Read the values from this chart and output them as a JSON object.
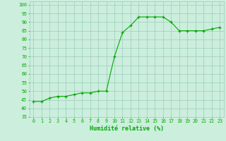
{
  "x": [
    0,
    1,
    2,
    3,
    4,
    5,
    6,
    7,
    8,
    9,
    10,
    11,
    12,
    13,
    14,
    15,
    16,
    17,
    18,
    19,
    20,
    21,
    22,
    23
  ],
  "y": [
    44,
    44,
    46,
    47,
    47,
    48,
    49,
    49,
    50,
    50,
    70,
    84,
    88,
    93,
    93,
    93,
    93,
    90,
    85,
    85,
    85,
    85,
    86,
    87
  ],
  "line_color": "#00aa00",
  "marker_color": "#00aa00",
  "bg_color": "#cceedd",
  "grid_color": "#99ccbb",
  "xlabel": "Humidité relative (%)",
  "ylim": [
    35,
    102
  ],
  "yticks": [
    35,
    40,
    45,
    50,
    55,
    60,
    65,
    70,
    75,
    80,
    85,
    90,
    95,
    100
  ],
  "xlim": [
    -0.5,
    23.5
  ],
  "tick_label_color": "#00aa00",
  "xlabel_color": "#00aa00"
}
